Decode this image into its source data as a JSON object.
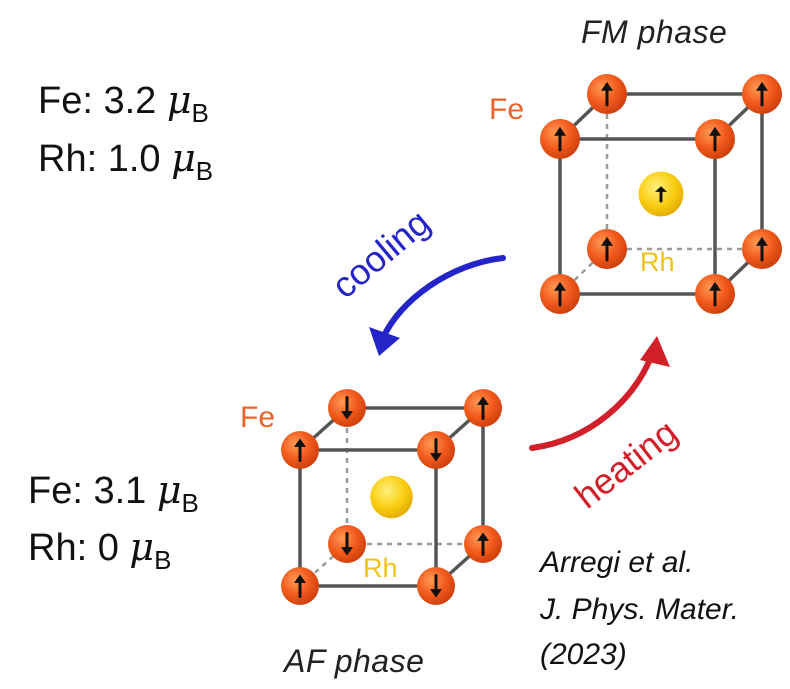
{
  "fm_moments": {
    "fe": "Fe: 3.2 ",
    "rh": "Rh: 1.0 ",
    "mu": "μ",
    "sub": "B"
  },
  "af_moments": {
    "fe": "Fe: 3.1 ",
    "rh": "Rh: 0 ",
    "mu": "μ",
    "sub": "B"
  },
  "fm_cube": {
    "title": "FM phase",
    "fe_label": "Fe",
    "rh_label": "Rh",
    "spins": [
      "up",
      "up",
      "up",
      "up",
      "up",
      "up",
      "up",
      "up"
    ],
    "rh_spin": "up"
  },
  "af_cube": {
    "title": "AF phase",
    "fe_label": "Fe",
    "rh_label": "Rh",
    "spins": [
      "up",
      "down",
      "down",
      "up",
      "down",
      "up",
      "up",
      "down"
    ],
    "rh_spin": "none"
  },
  "transitions": {
    "cooling": "cooling",
    "heating": "heating",
    "cooling_color": "#2424c8",
    "heating_color": "#d2202a"
  },
  "citation": {
    "line1": "Arregi et al.",
    "line2": "J. Phys. Mater.",
    "line3": "(2023)"
  },
  "colors": {
    "fe_atom": "#f0501e",
    "rh_atom": "#f5c400",
    "edge": "#555555",
    "hidden_edge": "#9a9a9a"
  }
}
